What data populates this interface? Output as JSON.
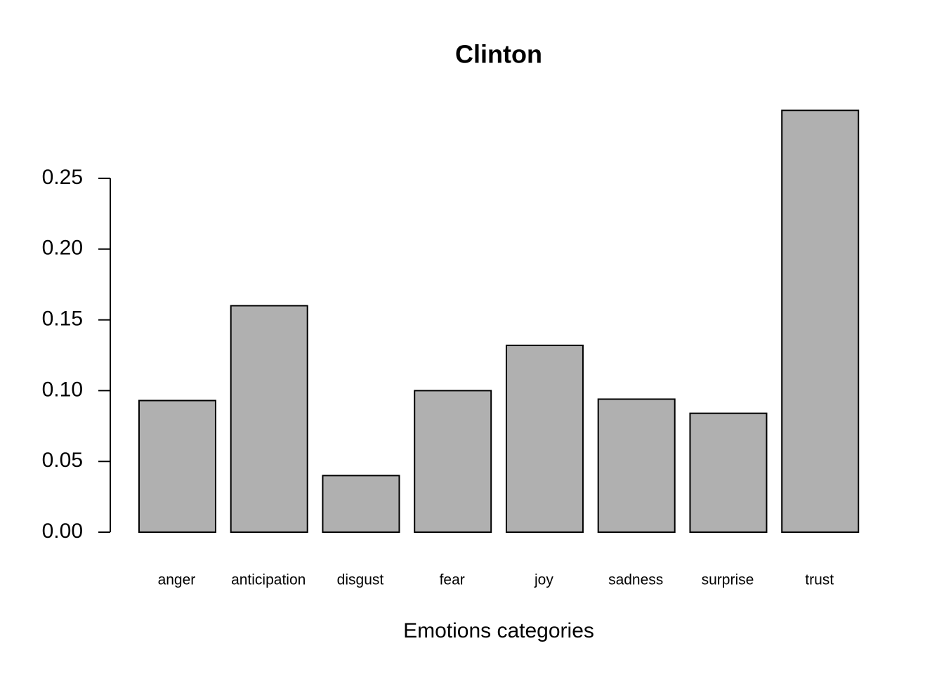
{
  "chart_data": {
    "type": "bar",
    "title": "Clinton",
    "x_label": "Emotions categories",
    "categories": [
      "anger",
      "anticipation",
      "disgust",
      "fear",
      "joy",
      "sadness",
      "surprise",
      "trust"
    ],
    "values": [
      0.093,
      0.16,
      0.04,
      0.1,
      0.132,
      0.094,
      0.084,
      0.298
    ],
    "color": "#b0b0b0",
    "ylim": [
      0,
      0.3
    ],
    "yticks": [
      {
        "value": 0,
        "label": "0.00"
      },
      {
        "value": 0.05,
        "label": "0.05"
      },
      {
        "value": 0.1,
        "label": "0.10"
      },
      0.15,
      {
        "value": 0.2,
        "label": "0.20"
      },
      0.25
    ],
    "grid": false
  }
}
